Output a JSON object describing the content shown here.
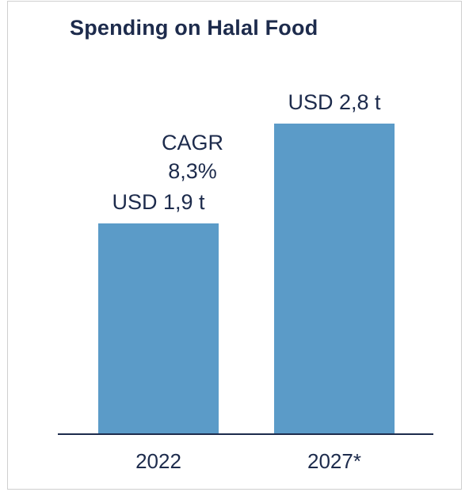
{
  "chart_data": {
    "type": "bar",
    "title": "Spending on Halal Food",
    "categories": [
      "2022",
      "2027*"
    ],
    "values": [
      1.9,
      2.8
    ],
    "value_labels": [
      "USD 1,9 t",
      "USD 2,8 t"
    ],
    "ylim": [
      0,
      3.2
    ],
    "grid": false,
    "annotation": {
      "line1": "CAGR",
      "line2": "8,3%"
    },
    "bar_color": "#5b9bc8",
    "text_color": "#1d2b4c",
    "axis_color": "#1d2b4c"
  }
}
